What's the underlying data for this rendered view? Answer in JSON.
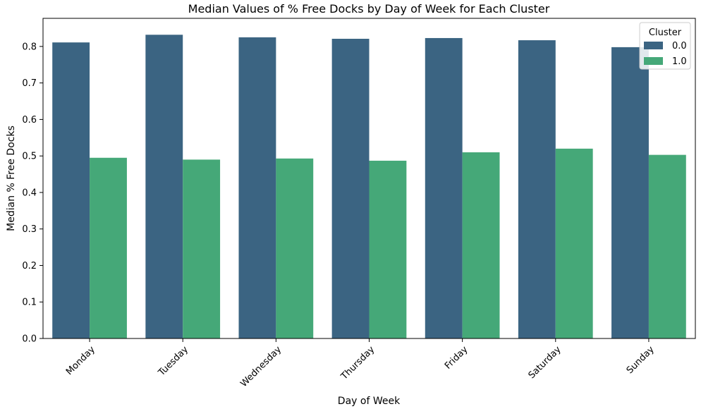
{
  "chart_data": {
    "type": "bar",
    "title": "Median Values of % Free Docks by Day of Week for Each Cluster",
    "xlabel": "Day of Week",
    "ylabel": "Median % Free Docks",
    "categories": [
      "Monday",
      "Tuesday",
      "Wednesday",
      "Thursday",
      "Friday",
      "Saturday",
      "Sunday"
    ],
    "series": [
      {
        "name": "0.0",
        "color": "#3b6482",
        "values": [
          0.811,
          0.832,
          0.825,
          0.821,
          0.823,
          0.817,
          0.798
        ]
      },
      {
        "name": "1.0",
        "color": "#45a878",
        "values": [
          0.495,
          0.49,
          0.493,
          0.487,
          0.51,
          0.52,
          0.503
        ]
      }
    ],
    "ylim": [
      0,
      0.877
    ],
    "yticks": [
      "0.0",
      "0.1",
      "0.2",
      "0.3",
      "0.4",
      "0.5",
      "0.6",
      "0.7",
      "0.8"
    ],
    "legend": {
      "title": "Cluster",
      "position": "top-right"
    },
    "grid": false
  }
}
